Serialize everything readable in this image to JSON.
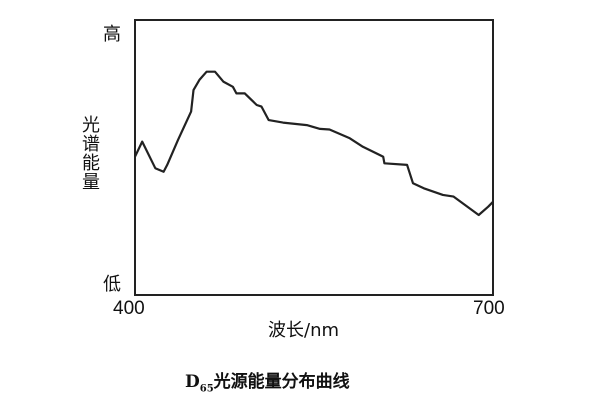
{
  "chart_data": {
    "type": "line",
    "title": "",
    "caption": {
      "prefix": "D",
      "subscript": "65",
      "text": "光源能量分布曲线"
    },
    "xlabel": "波长/nm",
    "ylabel": "光谱能量",
    "x_ticks": [
      "400",
      "700"
    ],
    "y_ticks": {
      "low": "低",
      "high": "高"
    },
    "xlim": [
      400,
      700
    ],
    "ylim": [
      0,
      100
    ],
    "grid": false,
    "line_color": "#222222",
    "series": [
      {
        "x": [
          400,
          406,
          417,
          424,
          427,
          436,
          447,
          449,
          454,
          460,
          467,
          474,
          482,
          485,
          492,
          502,
          506,
          512,
          524,
          544,
          555,
          563,
          580,
          591,
          608,
          609,
          628,
          633,
          642,
          658,
          667,
          688,
          696,
          700
        ],
        "y": [
          50.3,
          55.8,
          46.1,
          44.8,
          47.3,
          56.4,
          66.7,
          74.5,
          78.2,
          81.2,
          81.2,
          77.6,
          75.7,
          73.3,
          73.3,
          69.1,
          68.5,
          63.6,
          62.7,
          61.8,
          60.4,
          60.2,
          57.0,
          53.9,
          50.3,
          47.9,
          47.3,
          40.6,
          38.8,
          36.4,
          35.8,
          29.1,
          32.1,
          33.9
        ]
      }
    ]
  }
}
